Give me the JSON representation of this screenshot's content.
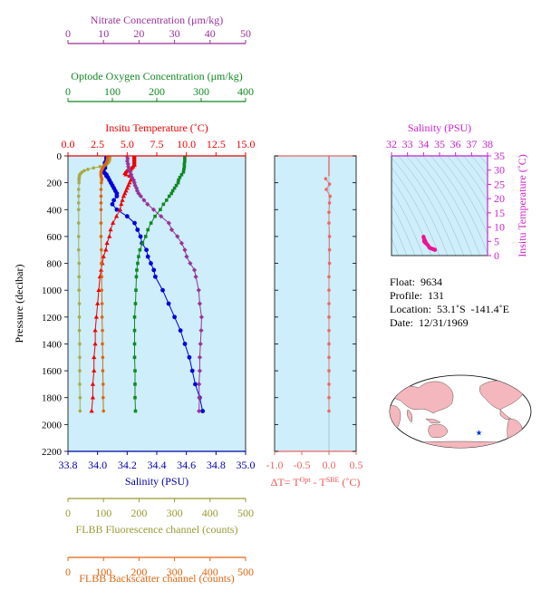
{
  "chart_data": [
    {
      "type": "line",
      "panel": "main-profile",
      "ylabel": "Pressure (decibar)",
      "ylim": [
        2200,
        0
      ],
      "yticks": [
        0,
        200,
        400,
        600,
        800,
        1000,
        1200,
        1400,
        1600,
        1800,
        2000,
        2200
      ],
      "invert_y": true,
      "grid": false,
      "axes": [
        {
          "id": "nitrate",
          "label": "Nitrate Concentration (μm/kg)",
          "range": [
            0,
            50
          ],
          "ticks": [
            0,
            10,
            20,
            30,
            40,
            50
          ],
          "position": "top",
          "color": "#993399"
        },
        {
          "id": "oxygen",
          "label": "Optode Oxygen Concentration (μm/kg)",
          "range": [
            0,
            400
          ],
          "ticks": [
            0,
            100,
            200,
            300,
            400
          ],
          "position": "top",
          "color": "#118822"
        },
        {
          "id": "temperature",
          "label": "Insitu Temperature (˚C)",
          "range": [
            0,
            15
          ],
          "ticks": [
            "0.0",
            "2.5",
            "5.0",
            "7.5",
            "10.0",
            "12.5",
            "15.0"
          ],
          "position": "top",
          "color": "#ee0000"
        },
        {
          "id": "salinity",
          "label": "Salinity (PSU)",
          "range": [
            33.8,
            35.0
          ],
          "ticks": [
            "33.8",
            "34.0",
            "34.2",
            "34.4",
            "34.6",
            "34.8",
            "35.0"
          ],
          "position": "bottom",
          "color": "#0000aa"
        },
        {
          "id": "fluorescence",
          "label": "FLBB Fluorescence channel (counts)",
          "range": [
            0,
            500
          ],
          "ticks": [
            0,
            100,
            200,
            300,
            400,
            500
          ],
          "position": "bottom",
          "color": "#999933"
        },
        {
          "id": "backscatter",
          "label": "FLBB Backscatter channel (counts)",
          "range": [
            0,
            500
          ],
          "ticks": [
            0,
            100,
            200,
            300,
            400,
            500
          ],
          "position": "bottom",
          "color": "#dd6611"
        }
      ],
      "series": [
        {
          "axis": "salinity",
          "color": "#0000dd",
          "marker": "circle",
          "p": [
            0,
            10,
            20,
            30,
            40,
            50,
            60,
            70,
            80,
            90,
            100,
            110,
            120,
            130,
            140,
            150,
            160,
            180,
            200,
            220,
            240,
            260,
            280,
            300,
            330,
            360,
            400,
            450,
            500,
            550,
            600,
            650,
            700,
            750,
            800,
            850,
            900,
            1000,
            1100,
            1200,
            1300,
            1400,
            1500,
            1600,
            1700,
            1800,
            1900
          ],
          "v": [
            34.06,
            34.06,
            34.06,
            34.06,
            34.06,
            34.05,
            34.05,
            34.05,
            34.05,
            34.05,
            34.04,
            34.04,
            34.04,
            34.05,
            34.06,
            34.06,
            34.07,
            34.08,
            34.09,
            34.1,
            34.11,
            34.12,
            34.13,
            34.13,
            34.11,
            34.1,
            34.13,
            34.2,
            34.25,
            34.27,
            34.29,
            34.3,
            34.33,
            34.34,
            34.36,
            34.38,
            34.39,
            34.44,
            34.48,
            34.52,
            34.56,
            34.59,
            34.62,
            34.64,
            34.66,
            34.69,
            34.71
          ]
        },
        {
          "axis": "temperature",
          "color": "#ee0000",
          "marker": "triangle",
          "p": [
            0,
            10,
            20,
            30,
            40,
            50,
            60,
            70,
            80,
            90,
            100,
            110,
            120,
            130,
            140,
            150,
            160,
            180,
            200,
            220,
            240,
            260,
            280,
            300,
            330,
            360,
            400,
            450,
            500,
            550,
            600,
            650,
            700,
            750,
            800,
            850,
            900,
            1000,
            1100,
            1200,
            1300,
            1400,
            1500,
            1600,
            1700,
            1800,
            1900
          ],
          "v": [
            5.6,
            5.6,
            5.6,
            5.6,
            5.6,
            5.6,
            5.6,
            5.6,
            5.5,
            5.4,
            5.3,
            5.0,
            4.9,
            4.8,
            4.9,
            5.2,
            5.4,
            5.3,
            5.2,
            5.1,
            5.0,
            4.9,
            4.8,
            4.7,
            4.6,
            4.5,
            4.4,
            4.1,
            3.8,
            3.6,
            3.5,
            3.3,
            3.2,
            3.0,
            2.9,
            2.8,
            2.7,
            2.6,
            2.5,
            2.4,
            2.3,
            2.3,
            2.2,
            2.2,
            2.1,
            2.1,
            2.0
          ]
        },
        {
          "axis": "oxygen",
          "color": "#118822",
          "marker": "square",
          "p": [
            0,
            20,
            40,
            60,
            80,
            100,
            120,
            140,
            160,
            180,
            200,
            220,
            240,
            260,
            280,
            300,
            330,
            360,
            400,
            450,
            500,
            550,
            600,
            650,
            700,
            750,
            800,
            850,
            900,
            1000,
            1100,
            1200,
            1300,
            1400,
            1500,
            1600,
            1700,
            1800,
            1900
          ],
          "v": [
            263,
            263,
            263,
            262,
            262,
            261,
            260,
            256,
            252,
            249,
            248,
            244,
            240,
            236,
            233,
            228,
            222,
            215,
            208,
            196,
            187,
            180,
            175,
            168,
            162,
            159,
            157,
            155,
            154,
            153,
            152,
            150,
            150,
            150,
            150,
            151,
            151,
            151,
            152
          ]
        },
        {
          "axis": "nitrate",
          "color": "#993399",
          "marker": "diamond",
          "p": [
            0,
            20,
            40,
            60,
            80,
            100,
            120,
            140,
            160,
            180,
            200,
            220,
            240,
            260,
            280,
            300,
            330,
            360,
            400,
            450,
            500,
            550,
            600,
            650,
            700,
            750,
            800,
            850,
            900,
            1000,
            1100,
            1200,
            1300,
            1400,
            1500,
            1600,
            1700,
            1800,
            1900
          ],
          "v": [
            16.6,
            16.8,
            16.7,
            16.9,
            17.0,
            17.1,
            17.5,
            17.8,
            18.0,
            18.5,
            18.7,
            18.9,
            19.3,
            19.5,
            19.9,
            20.5,
            21.4,
            22.4,
            24.1,
            26.2,
            28.4,
            29.2,
            30.8,
            32.0,
            32.9,
            33.4,
            34.4,
            35.6,
            36.0,
            36.8,
            37.1,
            37.6,
            37.5,
            37.3,
            37.1,
            37.1,
            36.9,
            37.0,
            36.9
          ]
        },
        {
          "axis": "fluorescence",
          "color": "#aaaa44",
          "marker": "circle",
          "p": [
            0,
            10,
            20,
            30,
            40,
            50,
            60,
            70,
            80,
            90,
            100,
            110,
            120,
            130,
            140,
            150,
            160,
            170,
            180,
            200,
            250,
            300,
            350,
            400,
            500,
            600,
            700,
            800,
            900,
            1000,
            1100,
            1200,
            1300,
            1400,
            1500,
            1600,
            1700,
            1800,
            1900
          ],
          "v": [
            118,
            118,
            118,
            117,
            116,
            114,
            110,
            104,
            90,
            72,
            56,
            46,
            40,
            36,
            33,
            32,
            32,
            31,
            31,
            31,
            30,
            30,
            30,
            30,
            30,
            30,
            30,
            31,
            31,
            31,
            32,
            32,
            32,
            33,
            33,
            33,
            33,
            34,
            34
          ]
        },
        {
          "axis": "backscatter",
          "color": "#dd6611",
          "marker": "circle",
          "p": [
            0,
            10,
            20,
            30,
            40,
            50,
            60,
            70,
            80,
            90,
            100,
            110,
            120,
            130,
            140,
            150,
            160,
            170,
            180,
            200,
            250,
            300,
            350,
            400,
            500,
            600,
            700,
            800,
            900,
            1000,
            1100,
            1200,
            1300,
            1400,
            1500,
            1600,
            1700,
            1800,
            1900
          ],
          "v": [
            112,
            112,
            112,
            111,
            110,
            108,
            106,
            103,
            100,
            98,
            96,
            94,
            93,
            93,
            93,
            93,
            94,
            95,
            95,
            94,
            93,
            93,
            93,
            93,
            93,
            93,
            94,
            94,
            95,
            95,
            96,
            96,
            97,
            97,
            98,
            98,
            99,
            99,
            100
          ]
        }
      ]
    },
    {
      "type": "scatter",
      "panel": "delta-t",
      "xlabel": "ΔT= T",
      "xlabel_sup1": "Opt",
      "xlabel_mid": " - T",
      "xlabel_sup2": "SBE",
      "xlabel_tail": " (˚C)",
      "xlim": [
        -1.0,
        0.5
      ],
      "xticks": [
        "-1.0",
        "-0.5",
        "0.0",
        "0.5"
      ],
      "ylim": [
        2200,
        0
      ],
      "color": "#ee6666",
      "points": [
        {
          "x": -0.06,
          "y": 170
        },
        {
          "x": 0.01,
          "y": 210
        },
        {
          "x": -0.05,
          "y": 250
        },
        {
          "x": 0.02,
          "y": 300
        },
        {
          "x": 0.01,
          "y": 350
        },
        {
          "x": 0.0,
          "y": 420
        },
        {
          "x": 0.0,
          "y": 500
        },
        {
          "x": 0.01,
          "y": 600
        },
        {
          "x": 0.01,
          "y": 700
        },
        {
          "x": 0.01,
          "y": 800
        },
        {
          "x": 0.0,
          "y": 900
        },
        {
          "x": 0.0,
          "y": 1000
        },
        {
          "x": 0.0,
          "y": 1100
        },
        {
          "x": 0.0,
          "y": 1200
        },
        {
          "x": 0.0,
          "y": 1300
        },
        {
          "x": 0.0,
          "y": 1400
        },
        {
          "x": 0.0,
          "y": 1500
        },
        {
          "x": 0.0,
          "y": 1600
        },
        {
          "x": 0.0,
          "y": 1700
        },
        {
          "x": 0.0,
          "y": 1800
        },
        {
          "x": 0.0,
          "y": 1900
        }
      ],
      "surface_segment": {
        "x": 0.0,
        "y0": 0,
        "y1": 150
      }
    },
    {
      "type": "scatter",
      "panel": "ts-diagram",
      "xlabel": "Salinity (PSU)",
      "ylabel": "Insitu Temperature (˚C)",
      "xlim": [
        32,
        38
      ],
      "xticks": [
        32,
        33,
        34,
        35,
        36,
        37,
        38
      ],
      "ylim": [
        0,
        35
      ],
      "yticks": [
        0,
        5,
        10,
        15,
        20,
        25,
        30,
        35
      ],
      "color": "#ee1199",
      "points": [
        {
          "x": 34.06,
          "y": 5.6
        },
        {
          "x": 34.05,
          "y": 5.4
        },
        {
          "x": 34.04,
          "y": 5.0
        },
        {
          "x": 34.07,
          "y": 5.4
        },
        {
          "x": 34.1,
          "y": 5.1
        },
        {
          "x": 34.13,
          "y": 4.7
        },
        {
          "x": 34.11,
          "y": 4.5
        },
        {
          "x": 34.2,
          "y": 4.1
        },
        {
          "x": 34.29,
          "y": 3.5
        },
        {
          "x": 34.36,
          "y": 2.9
        },
        {
          "x": 34.44,
          "y": 2.6
        },
        {
          "x": 34.52,
          "y": 2.4
        },
        {
          "x": 34.59,
          "y": 2.3
        },
        {
          "x": 34.64,
          "y": 2.2
        },
        {
          "x": 34.69,
          "y": 2.1
        },
        {
          "x": 34.71,
          "y": 2.0
        },
        {
          "x": 34.0,
          "y": 6.6
        },
        {
          "x": 34.02,
          "y": 6.2
        }
      ]
    },
    {
      "type": "map",
      "panel": "location-map",
      "marker": {
        "lat": -53.1,
        "lon": -141.4,
        "color": "#0033cc"
      }
    }
  ],
  "info": {
    "float_label": "Float:",
    "float_value": "9634",
    "profile_label": "Profile:",
    "profile_value": "131",
    "location_label": "Location:",
    "location_value": "53.1˚S  -141.4˚E",
    "date_label": "Date:",
    "date_value": "12/31/1969"
  }
}
